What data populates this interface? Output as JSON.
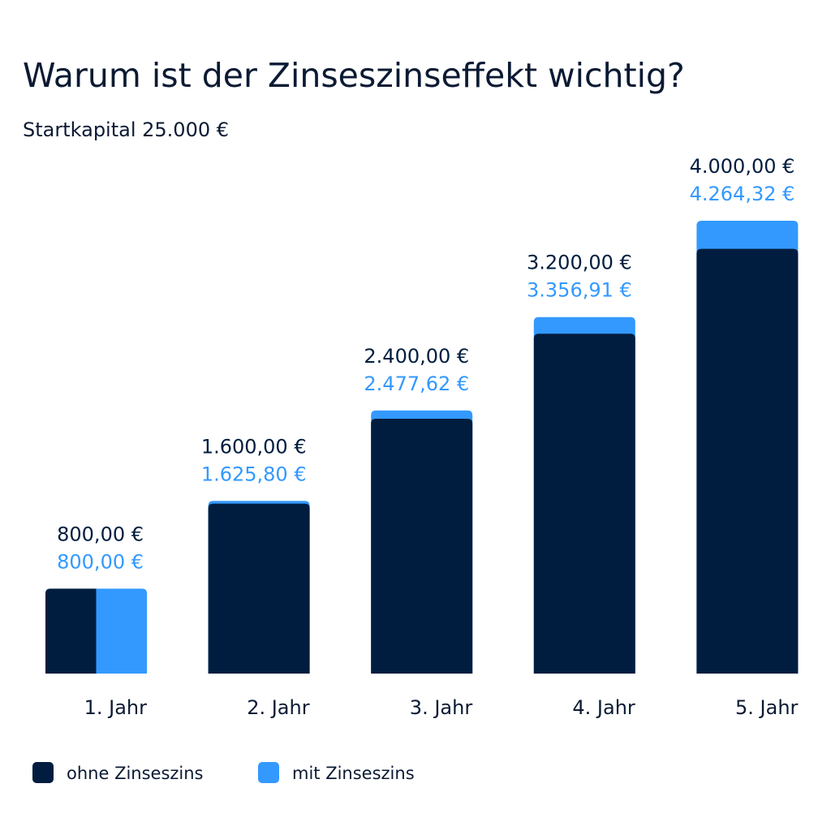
{
  "chart_data": {
    "type": "overlap-bar",
    "title": "Warum ist der Zinseszinseffekt wichtig?",
    "subtitle": "Startkapital 25.000 €",
    "categories": [
      "1. Jahr",
      "2. Jahr",
      "3. Jahr",
      "4. Jahr",
      "5. Jahr"
    ],
    "series": [
      {
        "name": "ohne Zinseszins",
        "color": "#001d3f",
        "values": [
          800,
          1600,
          2400,
          3200,
          4000
        ],
        "value_labels": [
          "800,00 €",
          "1.600,00 €",
          "2.400,00 €",
          "3.200,00 €",
          "4.000,00 €"
        ]
      },
      {
        "name": "mit Zinseszins",
        "color": "#3399ff",
        "values": [
          800,
          1625.8,
          2477.62,
          3356.91,
          4264.32
        ],
        "value_labels": [
          "800,00 €",
          "1.625,80 €",
          "2.477,62 €",
          "3.356,91 €",
          "4.264,32 €"
        ]
      }
    ]
  }
}
